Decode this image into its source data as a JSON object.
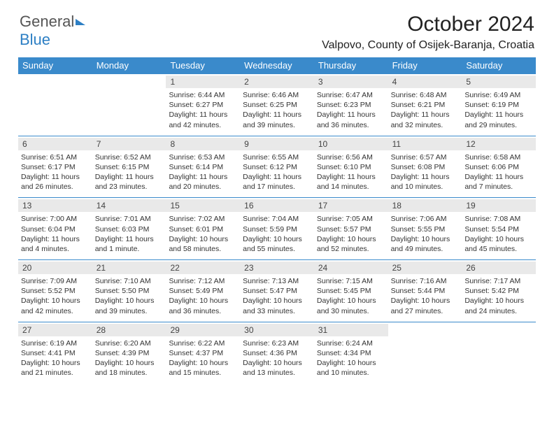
{
  "logo": {
    "text_general": "General",
    "text_blue": "Blue"
  },
  "title": "October 2024",
  "location": "Valpovo, County of Osijek-Baranja, Croatia",
  "colors": {
    "header_bg": "#3a8acb",
    "header_text": "#ffffff",
    "num_row_bg": "#e9e9e9",
    "border": "#3a8acb",
    "body_text": "#333333"
  },
  "day_names": [
    "Sunday",
    "Monday",
    "Tuesday",
    "Wednesday",
    "Thursday",
    "Friday",
    "Saturday"
  ],
  "weeks": [
    [
      {
        "empty": true
      },
      {
        "empty": true
      },
      {
        "num": "1",
        "sunrise": "Sunrise: 6:44 AM",
        "sunset": "Sunset: 6:27 PM",
        "daylight": "Daylight: 11 hours and 42 minutes."
      },
      {
        "num": "2",
        "sunrise": "Sunrise: 6:46 AM",
        "sunset": "Sunset: 6:25 PM",
        "daylight": "Daylight: 11 hours and 39 minutes."
      },
      {
        "num": "3",
        "sunrise": "Sunrise: 6:47 AM",
        "sunset": "Sunset: 6:23 PM",
        "daylight": "Daylight: 11 hours and 36 minutes."
      },
      {
        "num": "4",
        "sunrise": "Sunrise: 6:48 AM",
        "sunset": "Sunset: 6:21 PM",
        "daylight": "Daylight: 11 hours and 32 minutes."
      },
      {
        "num": "5",
        "sunrise": "Sunrise: 6:49 AM",
        "sunset": "Sunset: 6:19 PM",
        "daylight": "Daylight: 11 hours and 29 minutes."
      }
    ],
    [
      {
        "num": "6",
        "sunrise": "Sunrise: 6:51 AM",
        "sunset": "Sunset: 6:17 PM",
        "daylight": "Daylight: 11 hours and 26 minutes."
      },
      {
        "num": "7",
        "sunrise": "Sunrise: 6:52 AM",
        "sunset": "Sunset: 6:15 PM",
        "daylight": "Daylight: 11 hours and 23 minutes."
      },
      {
        "num": "8",
        "sunrise": "Sunrise: 6:53 AM",
        "sunset": "Sunset: 6:14 PM",
        "daylight": "Daylight: 11 hours and 20 minutes."
      },
      {
        "num": "9",
        "sunrise": "Sunrise: 6:55 AM",
        "sunset": "Sunset: 6:12 PM",
        "daylight": "Daylight: 11 hours and 17 minutes."
      },
      {
        "num": "10",
        "sunrise": "Sunrise: 6:56 AM",
        "sunset": "Sunset: 6:10 PM",
        "daylight": "Daylight: 11 hours and 14 minutes."
      },
      {
        "num": "11",
        "sunrise": "Sunrise: 6:57 AM",
        "sunset": "Sunset: 6:08 PM",
        "daylight": "Daylight: 11 hours and 10 minutes."
      },
      {
        "num": "12",
        "sunrise": "Sunrise: 6:58 AM",
        "sunset": "Sunset: 6:06 PM",
        "daylight": "Daylight: 11 hours and 7 minutes."
      }
    ],
    [
      {
        "num": "13",
        "sunrise": "Sunrise: 7:00 AM",
        "sunset": "Sunset: 6:04 PM",
        "daylight": "Daylight: 11 hours and 4 minutes."
      },
      {
        "num": "14",
        "sunrise": "Sunrise: 7:01 AM",
        "sunset": "Sunset: 6:03 PM",
        "daylight": "Daylight: 11 hours and 1 minute."
      },
      {
        "num": "15",
        "sunrise": "Sunrise: 7:02 AM",
        "sunset": "Sunset: 6:01 PM",
        "daylight": "Daylight: 10 hours and 58 minutes."
      },
      {
        "num": "16",
        "sunrise": "Sunrise: 7:04 AM",
        "sunset": "Sunset: 5:59 PM",
        "daylight": "Daylight: 10 hours and 55 minutes."
      },
      {
        "num": "17",
        "sunrise": "Sunrise: 7:05 AM",
        "sunset": "Sunset: 5:57 PM",
        "daylight": "Daylight: 10 hours and 52 minutes."
      },
      {
        "num": "18",
        "sunrise": "Sunrise: 7:06 AM",
        "sunset": "Sunset: 5:55 PM",
        "daylight": "Daylight: 10 hours and 49 minutes."
      },
      {
        "num": "19",
        "sunrise": "Sunrise: 7:08 AM",
        "sunset": "Sunset: 5:54 PM",
        "daylight": "Daylight: 10 hours and 45 minutes."
      }
    ],
    [
      {
        "num": "20",
        "sunrise": "Sunrise: 7:09 AM",
        "sunset": "Sunset: 5:52 PM",
        "daylight": "Daylight: 10 hours and 42 minutes."
      },
      {
        "num": "21",
        "sunrise": "Sunrise: 7:10 AM",
        "sunset": "Sunset: 5:50 PM",
        "daylight": "Daylight: 10 hours and 39 minutes."
      },
      {
        "num": "22",
        "sunrise": "Sunrise: 7:12 AM",
        "sunset": "Sunset: 5:49 PM",
        "daylight": "Daylight: 10 hours and 36 minutes."
      },
      {
        "num": "23",
        "sunrise": "Sunrise: 7:13 AM",
        "sunset": "Sunset: 5:47 PM",
        "daylight": "Daylight: 10 hours and 33 minutes."
      },
      {
        "num": "24",
        "sunrise": "Sunrise: 7:15 AM",
        "sunset": "Sunset: 5:45 PM",
        "daylight": "Daylight: 10 hours and 30 minutes."
      },
      {
        "num": "25",
        "sunrise": "Sunrise: 7:16 AM",
        "sunset": "Sunset: 5:44 PM",
        "daylight": "Daylight: 10 hours and 27 minutes."
      },
      {
        "num": "26",
        "sunrise": "Sunrise: 7:17 AM",
        "sunset": "Sunset: 5:42 PM",
        "daylight": "Daylight: 10 hours and 24 minutes."
      }
    ],
    [
      {
        "num": "27",
        "sunrise": "Sunrise: 6:19 AM",
        "sunset": "Sunset: 4:41 PM",
        "daylight": "Daylight: 10 hours and 21 minutes."
      },
      {
        "num": "28",
        "sunrise": "Sunrise: 6:20 AM",
        "sunset": "Sunset: 4:39 PM",
        "daylight": "Daylight: 10 hours and 18 minutes."
      },
      {
        "num": "29",
        "sunrise": "Sunrise: 6:22 AM",
        "sunset": "Sunset: 4:37 PM",
        "daylight": "Daylight: 10 hours and 15 minutes."
      },
      {
        "num": "30",
        "sunrise": "Sunrise: 6:23 AM",
        "sunset": "Sunset: 4:36 PM",
        "daylight": "Daylight: 10 hours and 13 minutes."
      },
      {
        "num": "31",
        "sunrise": "Sunrise: 6:24 AM",
        "sunset": "Sunset: 4:34 PM",
        "daylight": "Daylight: 10 hours and 10 minutes."
      },
      {
        "empty": true
      },
      {
        "empty": true
      }
    ]
  ]
}
